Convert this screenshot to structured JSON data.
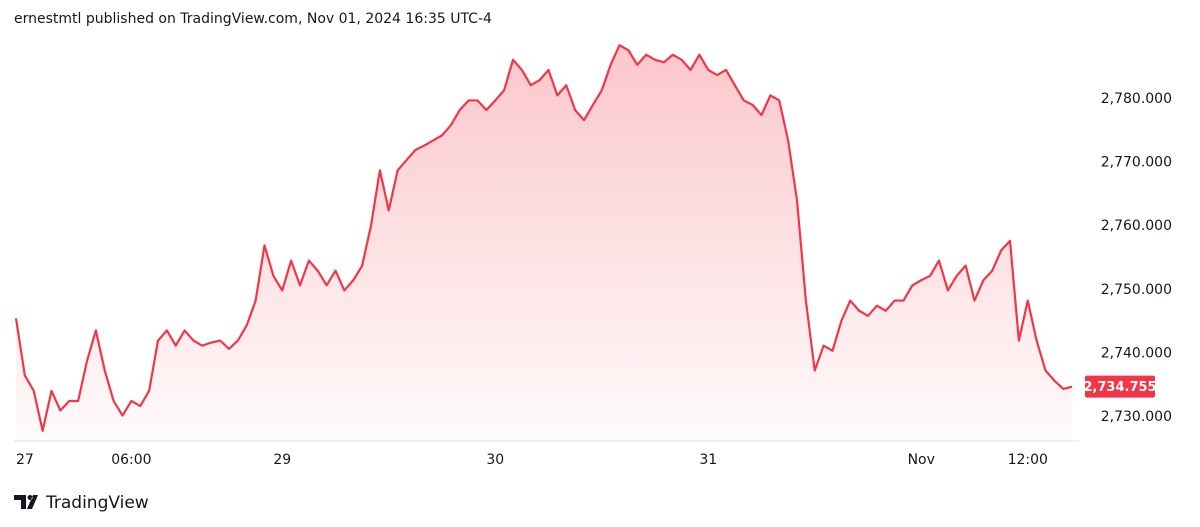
{
  "chart_data": {
    "type": "area",
    "title": "ernestmtl published on TradingView.com, Nov 01, 2024 16:35 UTC-4",
    "brand": "TradingView",
    "color": "#f23645",
    "grid": false,
    "categories": [
      null,
      "27",
      null,
      null,
      null,
      null,
      null,
      null,
      null,
      null,
      null,
      null,
      null,
      "06:00",
      null,
      null,
      null,
      null,
      null,
      null,
      null,
      null,
      null,
      null,
      null,
      null,
      null,
      null,
      null,
      null,
      "29",
      null,
      null,
      null,
      null,
      null,
      null,
      null,
      null,
      null,
      null,
      null,
      null,
      null,
      null,
      null,
      null,
      null,
      null,
      null,
      null,
      null,
      null,
      null,
      "30",
      null,
      null,
      null,
      null,
      null,
      null,
      null,
      null,
      null,
      null,
      null,
      null,
      null,
      null,
      null,
      null,
      null,
      null,
      null,
      null,
      null,
      null,
      null,
      "31",
      null,
      null,
      null,
      null,
      null,
      null,
      null,
      null,
      null,
      null,
      null,
      null,
      null,
      null,
      null,
      null,
      null,
      null,
      null,
      null,
      null,
      null,
      null,
      "Nov",
      null,
      null,
      null,
      null,
      null,
      null,
      null,
      null,
      null,
      null,
      null,
      "12:00",
      null,
      null,
      null,
      null,
      null
    ],
    "values": [
      2745.5,
      2736.5,
      2734.1,
      2727.8,
      2734.1,
      2731.0,
      2732.5,
      2732.5,
      2738.8,
      2743.6,
      2737.3,
      2732.5,
      2730.2,
      2732.5,
      2731.7,
      2734.1,
      2742.0,
      2743.6,
      2741.2,
      2743.6,
      2742.0,
      2741.2,
      2741.7,
      2742.0,
      2740.7,
      2742.0,
      2744.4,
      2748.3,
      2757.0,
      2752.2,
      2749.9,
      2754.6,
      2750.7,
      2754.6,
      2753.0,
      2750.7,
      2753.0,
      2749.9,
      2751.5,
      2753.8,
      2760.1,
      2768.8,
      2762.5,
      2768.8,
      2770.4,
      2772.0,
      2772.7,
      2773.5,
      2774.3,
      2775.9,
      2778.3,
      2779.8,
      2779.8,
      2778.3,
      2779.8,
      2781.4,
      2786.2,
      2784.6,
      2782.2,
      2783.0,
      2784.6,
      2780.6,
      2782.2,
      2778.3,
      2776.7,
      2779.1,
      2781.4,
      2785.4,
      2788.5,
      2787.7,
      2785.4,
      2787.0,
      2786.2,
      2785.8,
      2787.0,
      2786.2,
      2784.6,
      2787.0,
      2784.6,
      2783.8,
      2784.6,
      2782.2,
      2779.8,
      2779.1,
      2777.5,
      2780.6,
      2779.8,
      2773.5,
      2764.1,
      2748.3,
      2737.3,
      2741.2,
      2740.4,
      2745.1,
      2748.3,
      2746.7,
      2745.9,
      2747.5,
      2746.7,
      2748.3,
      2748.3,
      2750.7,
      2751.5,
      2752.2,
      2754.6,
      2749.9,
      2752.2,
      2753.8,
      2748.3,
      2751.5,
      2753.0,
      2756.2,
      2757.7,
      2742.0,
      2748.3,
      2742.0,
      2737.3,
      2735.7,
      2734.4,
      2734.755
    ],
    "last_price": {
      "value": 2734.755,
      "label": "2,734.755"
    },
    "ylim": [
      2726.2,
      2790.1
    ],
    "yticks": [
      {
        "value": 2730,
        "label": "2,730.000"
      },
      {
        "value": 2740,
        "label": "2,740.000"
      },
      {
        "value": 2750,
        "label": "2,750.000"
      },
      {
        "value": 2760,
        "label": "2,760.000"
      },
      {
        "value": 2770,
        "label": "2,770.000"
      },
      {
        "value": 2780,
        "label": "2,780.000"
      }
    ]
  }
}
